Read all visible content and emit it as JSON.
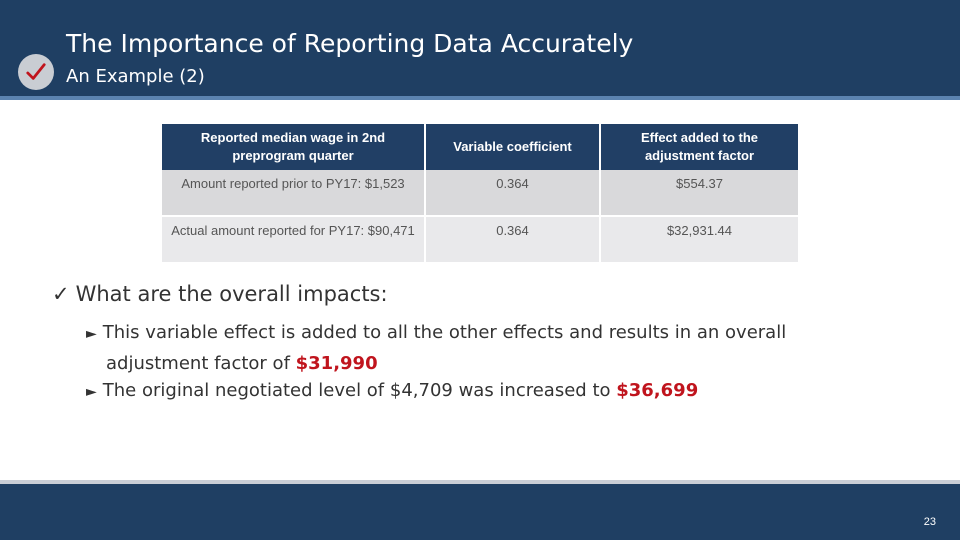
{
  "header": {
    "title": "The Importance of Reporting Data Accurately",
    "subtitle": "An Example (2)",
    "icon": "checkmark-icon"
  },
  "table": {
    "headers": [
      "Reported median wage in 2nd preprogram quarter",
      "Variable coefficient",
      "Effect added to the adjustment factor"
    ],
    "rows": [
      [
        "Amount reported prior to PY17: $1,523",
        "0.364",
        "$554.37"
      ],
      [
        "Actual amount reported for PY17: $90,471",
        "0.364",
        "$32,931.44"
      ]
    ]
  },
  "body": {
    "main_bullet": "What are the overall impacts:",
    "sub1_text_a": "This variable effect is added to all the other effects and results in an overall",
    "sub1_text_b": "adjustment factor of ",
    "sub1_highlight": "$31,990",
    "sub2_text": "The original negotiated level of $4,709 was increased to ",
    "sub2_highlight": "$36,699"
  },
  "footer": {
    "page_number": "23"
  },
  "colors": {
    "header_bg": "#1f3f63",
    "highlight": "#c0141d"
  }
}
